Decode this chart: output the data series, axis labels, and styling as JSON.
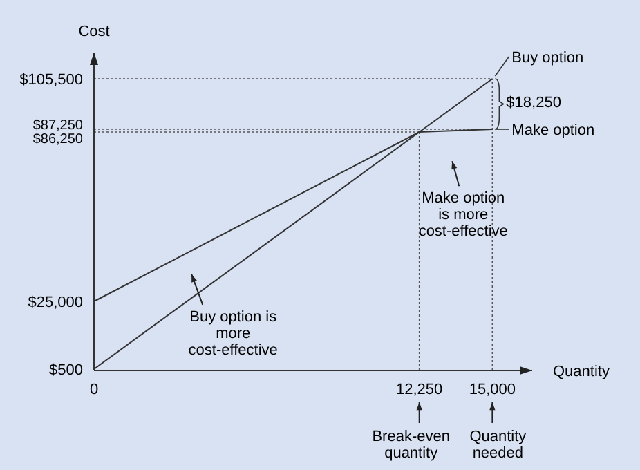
{
  "chart_data": {
    "type": "line",
    "ylabel": "Cost",
    "xlabel": "Quantity",
    "x": [
      0,
      12250,
      15000
    ],
    "series": [
      {
        "name": "Buy option",
        "color": "#333333",
        "values": [
          500,
          86250,
          105500
        ]
      },
      {
        "name": "Make option",
        "color": "#333333",
        "values": [
          25000,
          86250,
          87250
        ]
      }
    ],
    "xlim": [
      0,
      16500
    ],
    "xticks": [
      0,
      {
        "value": 12250,
        "label": "12,250"
      },
      {
        "value": 15000,
        "label": "15,000"
      }
    ],
    "ylim": [
      0,
      115000
    ],
    "yticks": [
      {
        "value": 500,
        "label": "$500"
      },
      {
        "value": 25000,
        "label": "$25,000"
      },
      {
        "value": 86250,
        "label": "$86,250"
      },
      {
        "value": 87250,
        "label": "$87,250"
      },
      {
        "value": 105500,
        "label": "$105,500"
      }
    ],
    "ref_lines": [
      {
        "axis": "y",
        "value": 105500,
        "line_style": "dotted"
      },
      {
        "axis": "y",
        "value": 87250,
        "line_style": "dotted"
      },
      {
        "axis": "y",
        "value": 86250,
        "line_style": "dotted"
      },
      {
        "axis": "x",
        "value": 12250,
        "line_style": "dotted"
      },
      {
        "axis": "x",
        "value": 15000,
        "line_style": "dotted"
      }
    ],
    "annotations": [
      "$18,250",
      "Make option is more cost-effective",
      "Buy option is more cost-effective",
      {
        "text": "Break-even quantity",
        "x": 12250
      },
      "Quantity needed"
    ],
    "grid": false,
    "legend": "right",
    "marker": "none",
    "line_style": "solid"
  }
}
